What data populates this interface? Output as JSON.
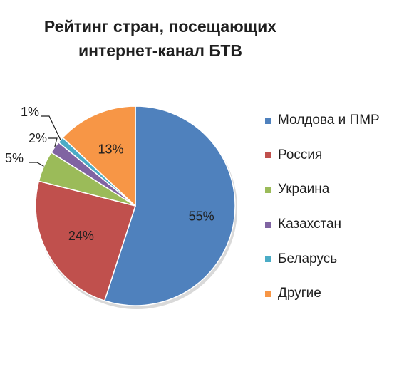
{
  "chart_data": {
    "type": "pie",
    "title_lines": [
      "Рейтинг стран, посещающих",
      "интернет-канал БТВ"
    ],
    "slices": [
      {
        "label": "Молдова и ПМР",
        "value": 55,
        "display": "55%",
        "color": "#4f81bd"
      },
      {
        "label": "Россия",
        "value": 24,
        "display": "24%",
        "color": "#c0504d"
      },
      {
        "label": "Украина",
        "value": 5,
        "display": "5%",
        "color": "#9bbb59"
      },
      {
        "label": "Казахстан",
        "value": 2,
        "display": "2%",
        "color": "#8064a2"
      },
      {
        "label": "Беларусь",
        "value": 1,
        "display": "1%",
        "color": "#4bacc6"
      },
      {
        "label": "Другие",
        "value": 13,
        "display": "13%",
        "color": "#f79646"
      }
    ],
    "legend_position": "right"
  }
}
